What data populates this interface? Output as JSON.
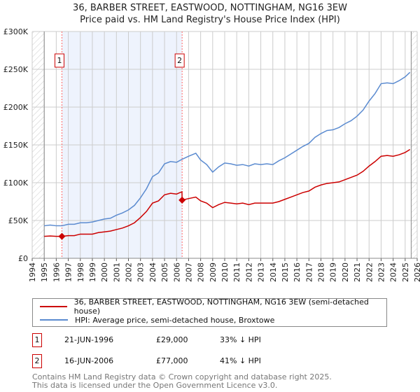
{
  "chart_data": {
    "type": "line",
    "title": "36, BARBER STREET, EASTWOOD, NOTTINGHAM, NG16 3EW",
    "subtitle": "Price paid vs. HM Land Registry's House Price Index (HPI)",
    "xlim": [
      1994,
      2026
    ],
    "ylim": [
      0,
      300000
    ],
    "x_ticks": [
      "1994",
      "1995",
      "1996",
      "1997",
      "1998",
      "1999",
      "2000",
      "2001",
      "2002",
      "2003",
      "2004",
      "2005",
      "2006",
      "2007",
      "2008",
      "2009",
      "2010",
      "2011",
      "2012",
      "2013",
      "2014",
      "2015",
      "2016",
      "2017",
      "2018",
      "2019",
      "2020",
      "2021",
      "2022",
      "2023",
      "2024",
      "2025",
      "2026"
    ],
    "y_ticks": [
      {
        "v": 0,
        "label": "£0"
      },
      {
        "v": 50000,
        "label": "£50K"
      },
      {
        "v": 100000,
        "label": "£100K"
      },
      {
        "v": 150000,
        "label": "£150K"
      },
      {
        "v": 200000,
        "label": "£200K"
      },
      {
        "v": 250000,
        "label": "£250K"
      },
      {
        "v": 300000,
        "label": "£300K"
      }
    ],
    "grid": true,
    "shaded_range": [
      1996.47,
      2006.46
    ],
    "hatched_ranges": [
      [
        1994,
        1995
      ],
      [
        2025.5,
        2026
      ]
    ],
    "series": [
      {
        "name": "36, BARBER STREET, EASTWOOD, NOTTINGHAM, NG16 3EW (semi-detached house)",
        "color": "#cc0000",
        "unit": "K",
        "points": [
          [
            1995,
            29
          ],
          [
            1995.5,
            29.5
          ],
          [
            1996,
            29
          ],
          [
            1996.47,
            29
          ],
          [
            1997,
            30
          ],
          [
            1997.5,
            30
          ],
          [
            1998,
            32
          ],
          [
            1998.5,
            32
          ],
          [
            1999,
            32
          ],
          [
            1999.5,
            34
          ],
          [
            2000,
            35
          ],
          [
            2000.5,
            36
          ],
          [
            2001,
            38
          ],
          [
            2001.5,
            40
          ],
          [
            2002,
            43
          ],
          [
            2002.5,
            47
          ],
          [
            2003,
            54
          ],
          [
            2003.5,
            62
          ],
          [
            2004,
            73
          ],
          [
            2004.5,
            76
          ],
          [
            2005,
            84
          ],
          [
            2005.5,
            86
          ],
          [
            2006,
            85
          ],
          [
            2006.45,
            88
          ],
          [
            2006.46,
            77
          ],
          [
            2007,
            79
          ],
          [
            2007.6,
            81
          ],
          [
            2008,
            76
          ],
          [
            2008.5,
            73
          ],
          [
            2009,
            67
          ],
          [
            2009.5,
            71
          ],
          [
            2010,
            74
          ],
          [
            2010.5,
            73
          ],
          [
            2011,
            72
          ],
          [
            2011.5,
            73
          ],
          [
            2012,
            71
          ],
          [
            2012.5,
            73
          ],
          [
            2013,
            73
          ],
          [
            2013.5,
            73
          ],
          [
            2014,
            73
          ],
          [
            2014.5,
            75
          ],
          [
            2015,
            78
          ],
          [
            2015.5,
            81
          ],
          [
            2016,
            84
          ],
          [
            2016.5,
            87
          ],
          [
            2017,
            89
          ],
          [
            2017.5,
            94
          ],
          [
            2018,
            97
          ],
          [
            2018.5,
            99
          ],
          [
            2019,
            100
          ],
          [
            2019.5,
            101
          ],
          [
            2020,
            104
          ],
          [
            2020.5,
            107
          ],
          [
            2021,
            110
          ],
          [
            2021.5,
            115
          ],
          [
            2022,
            122
          ],
          [
            2022.5,
            128
          ],
          [
            2023,
            135
          ],
          [
            2023.5,
            136
          ],
          [
            2024,
            135
          ],
          [
            2024.5,
            137
          ],
          [
            2025,
            140
          ],
          [
            2025.4,
            144
          ]
        ]
      },
      {
        "name": "HPI: Average price, semi-detached house, Broxtowe",
        "color": "#5b8bd0",
        "unit": "K",
        "points": [
          [
            1995,
            43
          ],
          [
            1995.5,
            44
          ],
          [
            1996,
            43
          ],
          [
            1996.47,
            43
          ],
          [
            1997,
            45
          ],
          [
            1997.5,
            45
          ],
          [
            1998,
            47
          ],
          [
            1998.5,
            47
          ],
          [
            1999,
            48
          ],
          [
            1999.5,
            50
          ],
          [
            2000,
            52
          ],
          [
            2000.5,
            53
          ],
          [
            2001,
            57
          ],
          [
            2001.5,
            60
          ],
          [
            2002,
            64
          ],
          [
            2002.5,
            70
          ],
          [
            2003,
            80
          ],
          [
            2003.5,
            92
          ],
          [
            2004,
            108
          ],
          [
            2004.5,
            113
          ],
          [
            2005,
            125
          ],
          [
            2005.5,
            128
          ],
          [
            2006,
            127
          ],
          [
            2006.46,
            131
          ],
          [
            2007,
            135
          ],
          [
            2007.6,
            139
          ],
          [
            2008,
            130
          ],
          [
            2008.5,
            124
          ],
          [
            2009,
            114
          ],
          [
            2009.5,
            121
          ],
          [
            2010,
            126
          ],
          [
            2010.5,
            125
          ],
          [
            2011,
            123
          ],
          [
            2011.5,
            124
          ],
          [
            2012,
            122
          ],
          [
            2012.5,
            125
          ],
          [
            2013,
            124
          ],
          [
            2013.5,
            125
          ],
          [
            2014,
            124
          ],
          [
            2014.5,
            129
          ],
          [
            2015,
            133
          ],
          [
            2015.5,
            138
          ],
          [
            2016,
            143
          ],
          [
            2016.5,
            148
          ],
          [
            2017,
            152
          ],
          [
            2017.5,
            160
          ],
          [
            2018,
            165
          ],
          [
            2018.5,
            169
          ],
          [
            2019,
            170
          ],
          [
            2019.5,
            173
          ],
          [
            2020,
            178
          ],
          [
            2020.5,
            182
          ],
          [
            2021,
            188
          ],
          [
            2021.5,
            196
          ],
          [
            2022,
            208
          ],
          [
            2022.5,
            218
          ],
          [
            2023,
            231
          ],
          [
            2023.5,
            232
          ],
          [
            2024,
            231
          ],
          [
            2024.5,
            235
          ],
          [
            2025,
            240
          ],
          [
            2025.4,
            246
          ]
        ]
      }
    ],
    "sales": [
      {
        "label": "1",
        "x": 1996.47,
        "price": 29,
        "date": "21-JUN-1996",
        "price_text": "£29,000",
        "hpi_text": "33% ↓ HPI"
      },
      {
        "label": "2",
        "x": 2006.46,
        "price": 77,
        "date": "16-JUN-2006",
        "price_text": "£77,000",
        "hpi_text": "41% ↓ HPI"
      }
    ]
  },
  "footer": {
    "line1": "Contains HM Land Registry data © Crown copyright and database right 2025.",
    "line2": "This data is licensed under the Open Government Licence v3.0."
  }
}
